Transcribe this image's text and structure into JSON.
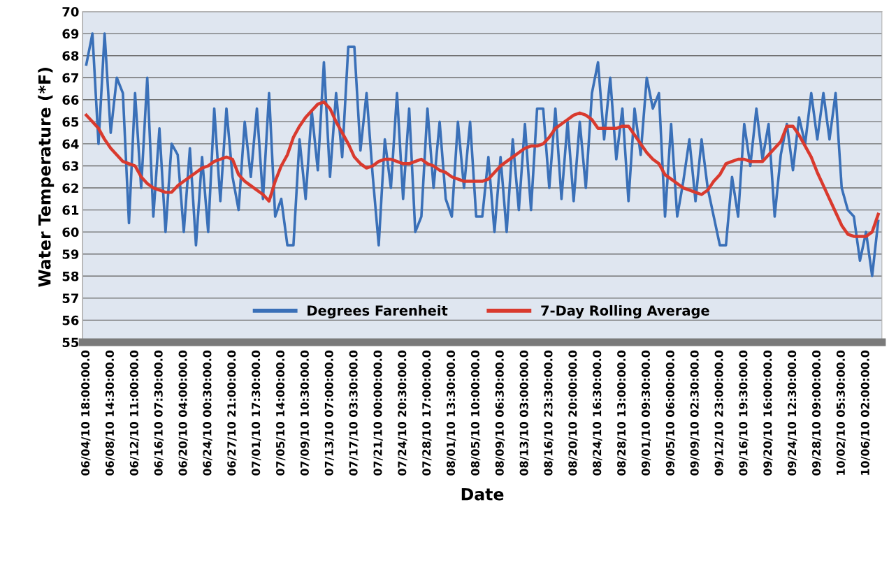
{
  "chart_data": {
    "type": "line",
    "xlabel": "Date",
    "ylabel": "Water Temperature (*F)",
    "categories": [
      "06/04/10 18:00:00.0",
      null,
      null,
      null,
      "06/08/10 14:30:00.0",
      null,
      null,
      null,
      "06/12/10 11:00:00.0",
      null,
      null,
      null,
      "06/16/10 07:30:00.0",
      null,
      null,
      null,
      "06/20/10 04:00:00.0",
      null,
      null,
      null,
      "06/24/10 00:30:00.0",
      null,
      null,
      null,
      "06/27/10 21:00:00.0",
      null,
      null,
      null,
      "07/01/10 17:30:00.0",
      null,
      null,
      null,
      "07/05/10 14:00:00.0",
      null,
      null,
      null,
      "07/09/10 10:30:00.0",
      null,
      null,
      null,
      "07/13/10 07:00:00.0",
      null,
      null,
      null,
      "07/17/10 03:30:00.0",
      null,
      null,
      null,
      "07/21/10 00:00:00.0",
      null,
      null,
      null,
      "07/24/10 20:30:00.0",
      null,
      null,
      null,
      "07/28/10 17:00:00.0",
      null,
      null,
      null,
      "08/01/10 13:30:00.0",
      null,
      null,
      null,
      "08/05/10 10:00:00.0",
      null,
      null,
      null,
      "08/09/10 06:30:00.0",
      null,
      null,
      null,
      "08/13/10 03:00:00.0",
      null,
      null,
      null,
      "08/16/10 23:30:00.0",
      null,
      null,
      null,
      "08/20/10 20:00:00.0",
      null,
      null,
      null,
      "08/24/10 16:30:00.0",
      null,
      null,
      null,
      "08/28/10 13:00:00.0",
      null,
      null,
      null,
      "09/01/10 09:30:00.0",
      null,
      null,
      null,
      "09/05/10 06:00:00.0",
      null,
      null,
      null,
      "09/09/10 02:30:00.0",
      null,
      null,
      null,
      "09/12/10 23:00:00.0",
      null,
      null,
      null,
      "09/16/10 19:30:00.0",
      null,
      null,
      null,
      "09/20/10 16:00:00.0",
      null,
      null,
      null,
      "09/24/10 12:30:00.0",
      null,
      null,
      null,
      "09/28/10 09:00:00.0",
      null,
      null,
      null,
      "10/02/10 05:30:00.0",
      null,
      null,
      null,
      "10/06/10 02:00:00.0",
      null,
      null
    ],
    "series": [
      {
        "name": "Degrees Farenheit",
        "color": "#3a70b8",
        "values": [
          67.6,
          69.0,
          64.0,
          69.0,
          64.5,
          67.0,
          66.3,
          60.4,
          66.3,
          62.0,
          67.0,
          60.7,
          64.7,
          60.0,
          64.0,
          63.5,
          60.0,
          63.8,
          59.4,
          63.4,
          60.0,
          65.6,
          61.4,
          65.6,
          62.5,
          61.0,
          65.0,
          62.5,
          65.6,
          61.5,
          66.3,
          60.7,
          61.5,
          59.4,
          59.4,
          64.2,
          61.5,
          65.5,
          62.8,
          67.7,
          62.5,
          66.3,
          63.4,
          68.4,
          68.4,
          63.7,
          66.3,
          62.6,
          59.4,
          64.2,
          62.0,
          66.3,
          61.5,
          65.6,
          60.0,
          60.7,
          65.6,
          62.0,
          65.0,
          61.5,
          60.7,
          65.0,
          62.0,
          65.0,
          60.7,
          60.7,
          63.4,
          60.0,
          63.4,
          60.0,
          64.2,
          61.0,
          64.9,
          61.0,
          65.6,
          65.6,
          62.0,
          65.6,
          61.5,
          65.0,
          61.4,
          65.0,
          62.0,
          66.3,
          67.7,
          64.2,
          67.0,
          63.3,
          65.6,
          61.4,
          65.6,
          63.5,
          67.0,
          65.6,
          66.3,
          60.7,
          64.9,
          60.7,
          62.3,
          64.2,
          61.4,
          64.2,
          62.0,
          60.7,
          59.4,
          59.4,
          62.5,
          60.7,
          64.9,
          63.0,
          65.6,
          63.3,
          64.9,
          60.7,
          63.5,
          64.9,
          62.8,
          65.2,
          64.0,
          66.3,
          64.2,
          66.3,
          64.2,
          66.3,
          62.0,
          61.0,
          60.7,
          58.7,
          60.0,
          58.0,
          60.5
        ]
      },
      {
        "name": "7-Day Rolling Average",
        "color": "#d93a2e",
        "values": [
          65.3,
          65.0,
          64.7,
          64.2,
          63.8,
          63.5,
          63.2,
          63.1,
          63.0,
          62.5,
          62.2,
          62.0,
          61.9,
          61.8,
          61.8,
          62.1,
          62.3,
          62.5,
          62.7,
          62.9,
          63.0,
          63.2,
          63.3,
          63.4,
          63.3,
          62.6,
          62.3,
          62.1,
          61.9,
          61.7,
          61.4,
          62.3,
          63.0,
          63.5,
          64.3,
          64.8,
          65.2,
          65.5,
          65.8,
          65.9,
          65.6,
          65.0,
          64.5,
          64.0,
          63.4,
          63.1,
          62.9,
          63.0,
          63.2,
          63.3,
          63.3,
          63.2,
          63.1,
          63.1,
          63.2,
          63.3,
          63.1,
          63.0,
          62.8,
          62.7,
          62.5,
          62.4,
          62.3,
          62.3,
          62.3,
          62.3,
          62.4,
          62.7,
          63.0,
          63.2,
          63.4,
          63.6,
          63.8,
          63.9,
          63.9,
          64.0,
          64.3,
          64.7,
          64.9,
          65.1,
          65.3,
          65.4,
          65.3,
          65.1,
          64.7,
          64.7,
          64.7,
          64.7,
          64.8,
          64.8,
          64.4,
          64.0,
          63.6,
          63.3,
          63.1,
          62.6,
          62.4,
          62.2,
          62.0,
          61.9,
          61.8,
          61.7,
          61.9,
          62.3,
          62.6,
          63.1,
          63.2,
          63.3,
          63.3,
          63.2,
          63.2,
          63.2,
          63.5,
          63.8,
          64.1,
          64.8,
          64.8,
          64.4,
          63.9,
          63.4,
          62.7,
          62.1,
          61.5,
          60.9,
          60.3,
          59.9,
          59.8,
          59.8,
          59.8,
          60.0,
          60.8
        ]
      }
    ],
    "ylim": [
      55,
      70
    ],
    "yticks": [
      55,
      56,
      57,
      58,
      59,
      60,
      61,
      62,
      63,
      64,
      65,
      66,
      67,
      68,
      69,
      70
    ],
    "grid": "y",
    "legend": "bottom",
    "marker": "none",
    "line_style": "solid"
  }
}
